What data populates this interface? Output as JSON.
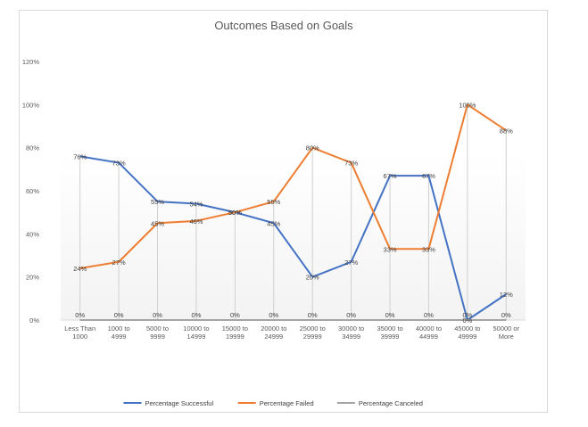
{
  "chart_data": {
    "type": "line",
    "title": "Outcomes Based on Goals",
    "xlabel": "",
    "ylabel": "",
    "categories": [
      [
        "Less Than",
        "1000"
      ],
      [
        "1000 to",
        "4999"
      ],
      [
        "5000 to",
        "9999"
      ],
      [
        "10000 to",
        "14999"
      ],
      [
        "15000 to",
        "19999"
      ],
      [
        "20000 to",
        "24999"
      ],
      [
        "25000 to",
        "29999"
      ],
      [
        "30000 to",
        "34999"
      ],
      [
        "35000 to",
        "39999"
      ],
      [
        "40000 to",
        "44999"
      ],
      [
        "45000 to",
        "49999"
      ],
      [
        "50000 or",
        "More"
      ]
    ],
    "ylim": [
      0,
      120
    ],
    "yticks": [
      0,
      20,
      40,
      60,
      80,
      100,
      120
    ],
    "ytick_labels": [
      "0%",
      "20%",
      "40%",
      "60%",
      "80%",
      "100%",
      "120%"
    ],
    "grid": "vertical drop lines",
    "legend": "bottom",
    "series": [
      {
        "name": "Percentage Successful",
        "color": "#4472c4",
        "values": [
          76,
          73,
          55,
          54,
          50,
          45,
          20,
          27,
          67,
          67,
          0,
          12
        ],
        "labels": [
          "76%",
          "73%",
          "55%",
          "54%",
          "50%",
          "45%",
          "20%",
          "27%",
          "67%",
          "67%",
          "0%",
          "12%"
        ]
      },
      {
        "name": "Percentage Failed",
        "color": "#ed7d31",
        "values": [
          24,
          27,
          45,
          46,
          50,
          55,
          80,
          73,
          33,
          33,
          100,
          88
        ],
        "labels": [
          "24%",
          "27%",
          "45%",
          "46%",
          "50%",
          "55%",
          "80%",
          "73%",
          "33%",
          "33%",
          "100%",
          "88%"
        ]
      },
      {
        "name": "Percentage Canceled",
        "color": "#a5a5a5",
        "values": [
          0,
          0,
          0,
          0,
          0,
          0,
          0,
          0,
          0,
          0,
          0,
          0
        ],
        "labels": [
          "0%",
          "0%",
          "0%",
          "0%",
          "0%",
          "0%",
          "0%",
          "0%",
          "0%",
          "0%",
          "0%",
          "0%"
        ]
      }
    ]
  }
}
